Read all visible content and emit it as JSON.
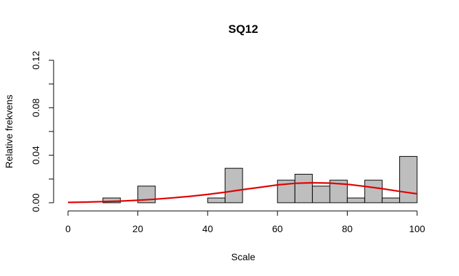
{
  "chart_data": {
    "type": "bar",
    "title": "SQ12",
    "xlabel": "Scale",
    "ylabel": "Relative frekvens",
    "xlim": [
      0,
      100
    ],
    "ylim": [
      0,
      0.12
    ],
    "xticks": [
      "0",
      "20",
      "40",
      "60",
      "80",
      "100"
    ],
    "yticks": [
      "0.00",
      "0.04",
      "0.08",
      "0.12"
    ],
    "bin_width": 5,
    "bins": [
      {
        "x0": 10,
        "x1": 15,
        "value": 0.004
      },
      {
        "x0": 20,
        "x1": 25,
        "value": 0.014
      },
      {
        "x0": 40,
        "x1": 45,
        "value": 0.004
      },
      {
        "x0": 45,
        "x1": 50,
        "value": 0.029
      },
      {
        "x0": 60,
        "x1": 65,
        "value": 0.019
      },
      {
        "x0": 65,
        "x1": 70,
        "value": 0.024
      },
      {
        "x0": 70,
        "x1": 75,
        "value": 0.014
      },
      {
        "x0": 75,
        "x1": 80,
        "value": 0.019
      },
      {
        "x0": 80,
        "x1": 85,
        "value": 0.004
      },
      {
        "x0": 85,
        "x1": 90,
        "value": 0.019
      },
      {
        "x0": 90,
        "x1": 95,
        "value": 0.004
      },
      {
        "x0": 95,
        "x1": 100,
        "value": 0.039
      }
    ],
    "curve": {
      "color": "#e00000",
      "x": [
        0,
        5,
        10,
        15,
        20,
        25,
        30,
        35,
        40,
        45,
        50,
        55,
        60,
        65,
        70,
        75,
        80,
        85,
        90,
        95,
        100
      ],
      "y": [
        0.0003,
        0.0005,
        0.0009,
        0.0014,
        0.0021,
        0.003,
        0.0041,
        0.0054,
        0.007,
        0.0089,
        0.011,
        0.013,
        0.015,
        0.0163,
        0.0168,
        0.0165,
        0.0155,
        0.0138,
        0.0118,
        0.0096,
        0.0075
      ]
    },
    "bar_color": "#bebebe",
    "grid": false,
    "legend": "none"
  }
}
